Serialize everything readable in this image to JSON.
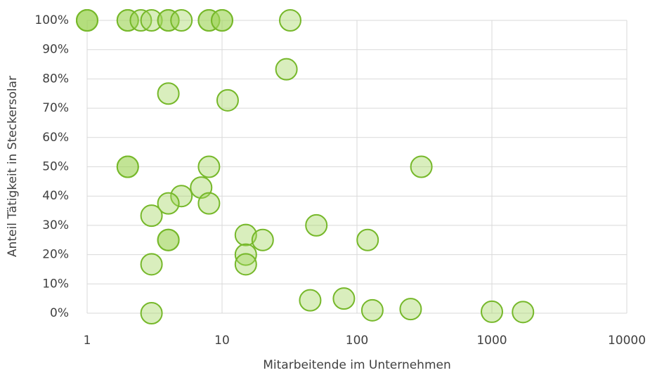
{
  "chart_data": {
    "type": "scatter",
    "xlabel": "Mitarbeitende im Unternehmen",
    "ylabel": "Anteil Tätigkeit in Steckersolar",
    "x": [
      1,
      1,
      1,
      2,
      2,
      2.5,
      3,
      4,
      4,
      5,
      8,
      8,
      10,
      10,
      32,
      30,
      4,
      11,
      2,
      2,
      8,
      300,
      7,
      5,
      4,
      8,
      3,
      50,
      15,
      4,
      4,
      20,
      120,
      15,
      15,
      3,
      45,
      80,
      130,
      250,
      1000,
      1700,
      3
    ],
    "values": [
      100,
      100,
      100,
      100,
      100,
      100,
      100,
      100,
      100,
      100,
      100,
      100,
      100,
      100,
      100,
      83.3,
      75,
      72.7,
      50,
      50,
      50,
      50,
      42.9,
      40,
      37.5,
      37.5,
      33.3,
      30,
      26.7,
      25,
      25,
      25,
      25,
      20,
      16.7,
      16.7,
      4.4,
      5,
      1,
      1.4,
      0.5,
      0.4,
      0
    ],
    "color": "#9fd45a",
    "edgecolor": "#76b82a",
    "xscale": "log",
    "xlim": [
      1,
      10000
    ],
    "xticks": [
      1,
      10,
      100,
      1000,
      10000
    ],
    "ylim": [
      0,
      100
    ],
    "yticks": [
      {
        "value": 0,
        "label": "0%"
      },
      {
        "value": 10,
        "label": "10%"
      },
      {
        "value": 20,
        "label": "20%"
      },
      {
        "value": 30,
        "label": "30%"
      },
      {
        "value": 40,
        "label": "40%"
      },
      {
        "value": 50,
        "label": "50%"
      },
      {
        "value": 60,
        "label": "60%"
      },
      {
        "value": 70,
        "label": "70%"
      },
      {
        "value": 80,
        "label": "80%"
      },
      {
        "value": 90,
        "label": "90%"
      },
      {
        "value": 100,
        "label": "100%"
      }
    ],
    "grid": true
  }
}
